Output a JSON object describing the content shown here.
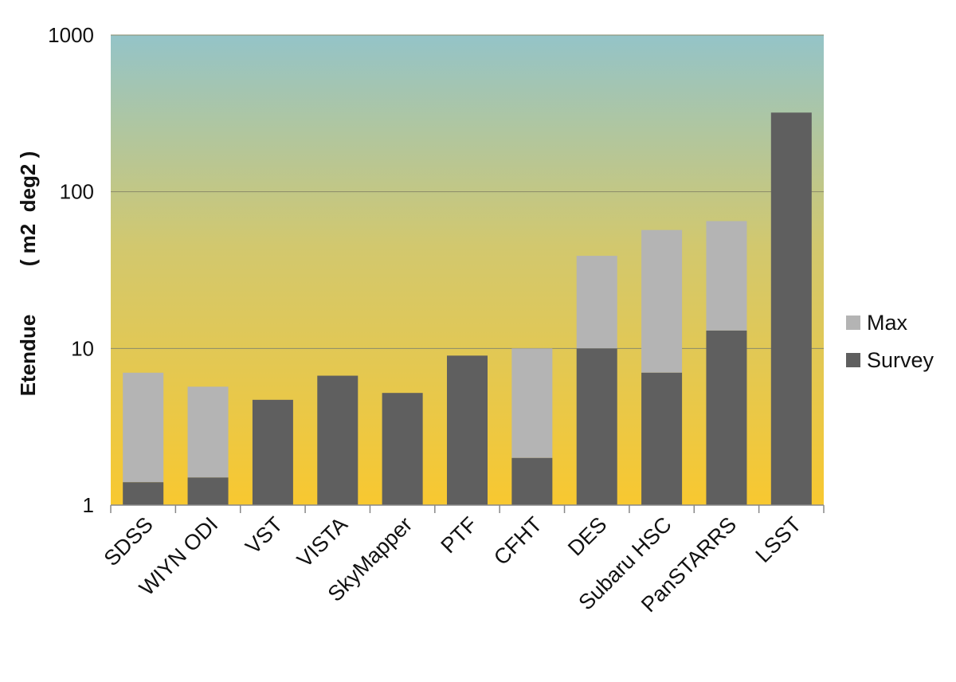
{
  "chart_data": {
    "type": "bar",
    "stacked": true,
    "y_scale": "log",
    "ylim": [
      1,
      1000
    ],
    "y_ticks": [
      "1",
      "10",
      "100",
      "1000"
    ],
    "ylabel_main": "Etendue",
    "ylabel_unit": "( m2  deg2 )",
    "xlabel": "",
    "title": "",
    "categories": [
      "SDSS",
      "WIYN ODI",
      "VST",
      "VISTA",
      "SkyMapper",
      "PTF",
      "CFHT",
      "DES",
      "Subaru HSC",
      "PanSTARRS",
      "LSST"
    ],
    "series": [
      {
        "name": "Survey",
        "values": [
          1.4,
          1.5,
          4.7,
          6.7,
          5.2,
          9.0,
          2.0,
          10,
          7.0,
          13,
          320
        ],
        "color": "#5f5f5f"
      },
      {
        "name": "Max",
        "values": [
          7.0,
          5.7,
          null,
          null,
          null,
          null,
          10,
          39,
          57,
          65,
          null
        ],
        "color": "#b4b4b4"
      }
    ],
    "grid": "horizontal at decades",
    "legend_position": "right",
    "legend": [
      "Max",
      "Survey"
    ],
    "background": "vertical gradient, teal (#94c4c8) at top to golden yellow (#f8c830) at bottom"
  }
}
